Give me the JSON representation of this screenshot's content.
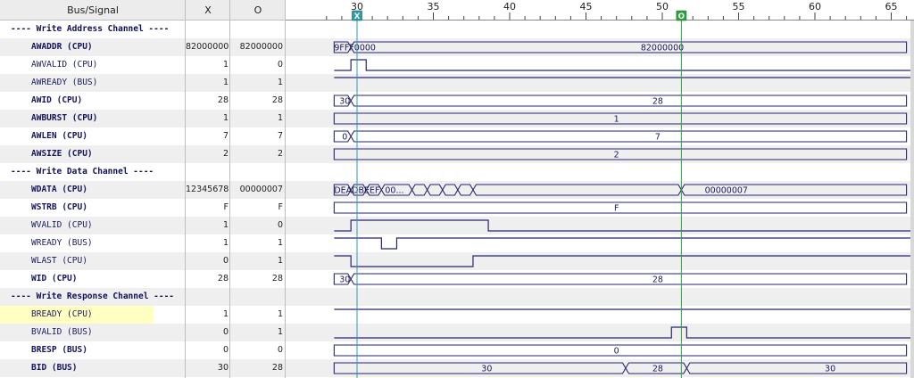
{
  "columns": {
    "signal": "Bus/Signal",
    "x": "X",
    "o": "O"
  },
  "timeline": {
    "ticks": [
      30,
      35,
      40,
      45,
      50,
      55,
      60,
      65
    ],
    "cursor_x": {
      "time": 30.0,
      "label": "X",
      "color": "#2b9bb7"
    },
    "cursor_o": {
      "time": 51.25,
      "label": "O",
      "color": "#2ea43a"
    }
  },
  "rows": [
    {
      "kind": "section",
      "label": "---- Write Address Channel ----"
    },
    {
      "kind": "bus",
      "label": "AWADDR (CPU)",
      "bold": true,
      "x": "82000000",
      "o": "82000000",
      "segments": [
        {
          "from": 28.5,
          "to": 29.6,
          "text": "9FFF0000"
        },
        {
          "from": 29.6,
          "to": 66,
          "text": "82000000",
          "tx": 50.0
        }
      ]
    },
    {
      "kind": "bit",
      "label": "AWVALID (CPU)",
      "x": "1",
      "o": "0",
      "edges": [
        {
          "t": 28.5,
          "v": 0
        },
        {
          "t": 29.6,
          "v": 1
        },
        {
          "t": 30.6,
          "v": 0
        }
      ]
    },
    {
      "kind": "bit",
      "label": "AWREADY (BUS)",
      "x": "1",
      "o": "1",
      "edges": [
        {
          "t": 28.5,
          "v": 1
        }
      ]
    },
    {
      "kind": "bus",
      "label": "AWID (CPU)",
      "bold": true,
      "x": "28",
      "o": "28",
      "segments": [
        {
          "from": 28.5,
          "to": 29.6,
          "text": "30",
          "tx": 29.2
        },
        {
          "from": 29.6,
          "to": 66,
          "text": "28",
          "tx": 49.7
        }
      ]
    },
    {
      "kind": "bus",
      "label": "AWBURST (CPU)",
      "bold": true,
      "x": "1",
      "o": "1",
      "segments": [
        {
          "from": 28.5,
          "to": 66,
          "text": "1",
          "tx": 47.0
        }
      ]
    },
    {
      "kind": "bus",
      "label": "AWLEN (CPU)",
      "bold": true,
      "x": "7",
      "o": "7",
      "segments": [
        {
          "from": 28.5,
          "to": 29.6,
          "text": "0",
          "tx": 29.2
        },
        {
          "from": 29.6,
          "to": 66,
          "text": "7",
          "tx": 49.7
        }
      ]
    },
    {
      "kind": "bus",
      "label": "AWSIZE (CPU)",
      "bold": true,
      "x": "2",
      "o": "2",
      "segments": [
        {
          "from": 28.5,
          "to": 66,
          "text": "2",
          "tx": 47.0
        }
      ]
    },
    {
      "kind": "section",
      "label": "---- Write Data Channel ----"
    },
    {
      "kind": "bus",
      "label": "WDATA (CPU)",
      "bold": true,
      "x": "12345678",
      "o": "00000007",
      "segments": [
        {
          "from": 28.5,
          "to": 29.6,
          "text": "DEADBEEF"
        },
        {
          "from": 29.6,
          "to": 30.6,
          "text": ""
        },
        {
          "from": 30.6,
          "to": 31.6,
          "text": ""
        },
        {
          "from": 31.6,
          "to": 33.6,
          "text": "00..."
        },
        {
          "from": 33.6,
          "to": 34.6,
          "text": ""
        },
        {
          "from": 34.6,
          "to": 35.6,
          "text": ""
        },
        {
          "from": 35.6,
          "to": 36.6,
          "text": ""
        },
        {
          "from": 36.6,
          "to": 37.6,
          "text": ""
        },
        {
          "from": 37.6,
          "to": 51.25,
          "text": ""
        },
        {
          "from": 51.25,
          "to": 66,
          "text": "00000007",
          "tx": 54.2
        }
      ]
    },
    {
      "kind": "bus",
      "label": "WSTRB (CPU)",
      "bold": true,
      "x": "F",
      "o": "F",
      "segments": [
        {
          "from": 28.5,
          "to": 66,
          "text": "F",
          "tx": 47.0
        }
      ]
    },
    {
      "kind": "bit",
      "label": "WVALID (CPU)",
      "x": "1",
      "o": "0",
      "edges": [
        {
          "t": 28.5,
          "v": 0
        },
        {
          "t": 29.6,
          "v": 1
        },
        {
          "t": 38.6,
          "v": 0
        }
      ]
    },
    {
      "kind": "bit",
      "label": "WREADY (BUS)",
      "x": "1",
      "o": "1",
      "edges": [
        {
          "t": 28.5,
          "v": 1
        },
        {
          "t": 31.6,
          "v": 0
        },
        {
          "t": 32.6,
          "v": 1
        }
      ]
    },
    {
      "kind": "bit",
      "label": "WLAST (CPU)",
      "x": "0",
      "o": "1",
      "edges": [
        {
          "t": 28.5,
          "v": 1
        },
        {
          "t": 29.6,
          "v": 0
        },
        {
          "t": 37.6,
          "v": 1
        }
      ]
    },
    {
      "kind": "bus",
      "label": "WID (CPU)",
      "bold": true,
      "x": "28",
      "o": "28",
      "segments": [
        {
          "from": 28.5,
          "to": 29.6,
          "text": "30",
          "tx": 29.2
        },
        {
          "from": 29.6,
          "to": 66,
          "text": "28",
          "tx": 49.7
        }
      ]
    },
    {
      "kind": "section",
      "label": "---- Write Response Channel ----"
    },
    {
      "kind": "bit",
      "label": "BREADY (CPU)",
      "highlight": true,
      "x": "1",
      "o": "1",
      "edges": [
        {
          "t": 28.5,
          "v": 1
        }
      ]
    },
    {
      "kind": "bit",
      "label": "BVALID (BUS)",
      "x": "0",
      "o": "1",
      "edges": [
        {
          "t": 28.5,
          "v": 0
        },
        {
          "t": 50.6,
          "v": 1
        },
        {
          "t": 51.6,
          "v": 0
        }
      ]
    },
    {
      "kind": "bus",
      "label": "BRESP (BUS)",
      "bold": true,
      "x": "0",
      "o": "0",
      "segments": [
        {
          "from": 28.5,
          "to": 66,
          "text": "0",
          "tx": 47.0
        }
      ]
    },
    {
      "kind": "bus",
      "label": "BID (BUS)",
      "bold": true,
      "x": "30",
      "o": "28",
      "segments": [
        {
          "from": 28.5,
          "to": 47.6,
          "text": "30",
          "tx": 38.5
        },
        {
          "from": 47.6,
          "to": 51.6,
          "text": "28",
          "tx": 49.7
        },
        {
          "from": 51.6,
          "to": 66,
          "text": "30",
          "tx": 61.0
        }
      ]
    }
  ]
}
